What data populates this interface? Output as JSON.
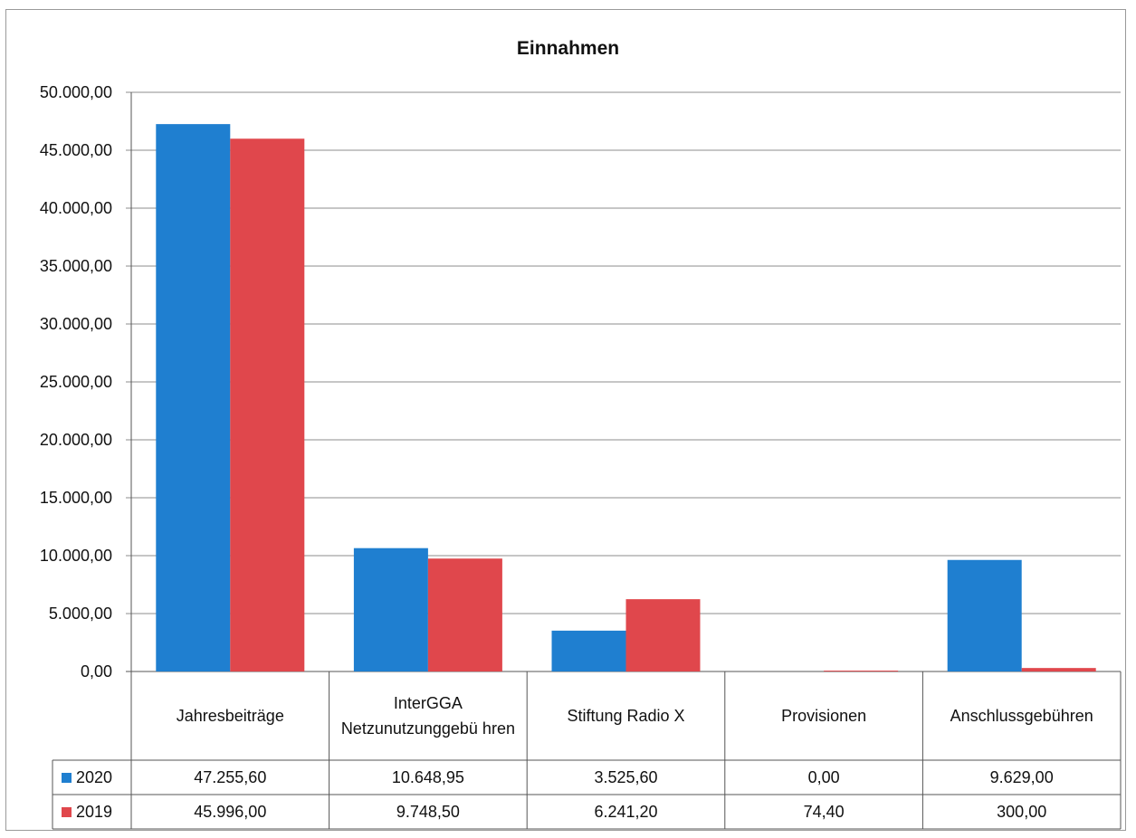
{
  "chart_data": {
    "type": "bar",
    "title": "Einnahmen",
    "categories": [
      "Jahresbeiträge",
      "InterGGA Netzunutzunggebü hren",
      "Stiftung Radio X",
      "Provisionen",
      "Anschlussgebühren"
    ],
    "series": [
      {
        "name": "2020",
        "color": "#1f7fd0",
        "values": [
          47255.6,
          10648.95,
          3525.6,
          0.0,
          9629.0
        ],
        "labels": [
          "47.255,60",
          "10.648,95",
          "3.525,60",
          "0,00",
          "9.629,00"
        ]
      },
      {
        "name": "2019",
        "color": "#e0474c",
        "values": [
          45996.0,
          9748.5,
          6241.2,
          74.4,
          300.0
        ],
        "labels": [
          "45.996,00",
          "9.748,50",
          "6.241,20",
          "74,40",
          "300,00"
        ]
      }
    ],
    "ylim": [
      0,
      50000
    ],
    "yticks": [
      "0,00",
      "5.000,00",
      "10.000,00",
      "15.000,00",
      "20.000,00",
      "25.000,00",
      "30.000,00",
      "35.000,00",
      "40.000,00",
      "45.000,00",
      "50.000,00"
    ],
    "grid": true,
    "legend": "data-table"
  }
}
